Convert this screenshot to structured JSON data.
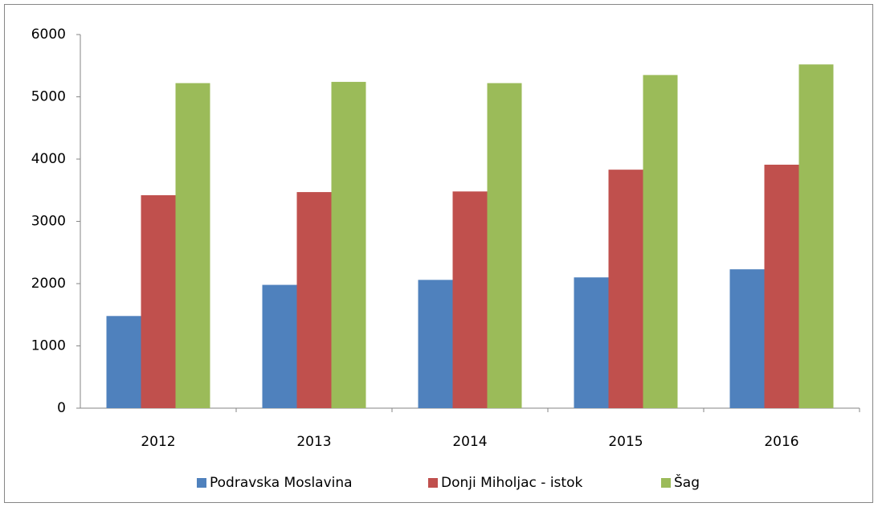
{
  "chart_data": {
    "type": "bar",
    "categories": [
      "2012",
      "2013",
      "2014",
      "2015",
      "2016"
    ],
    "series": [
      {
        "name": "Podravska Moslavina",
        "color": "#4f81bd",
        "values": [
          1480,
          1980,
          2060,
          2100,
          2230
        ]
      },
      {
        "name": "Donji Miholjac - istok",
        "color": "#c0504d",
        "values": [
          3420,
          3470,
          3480,
          3830,
          3910
        ]
      },
      {
        "name": "Šag",
        "color": "#9bbb59",
        "values": [
          5220,
          5240,
          5220,
          5350,
          5520
        ]
      }
    ],
    "ylim": [
      0,
      6000
    ],
    "yticks": [
      0,
      1000,
      2000,
      3000,
      4000,
      5000,
      6000
    ],
    "grid": false,
    "legend": "bottom"
  }
}
